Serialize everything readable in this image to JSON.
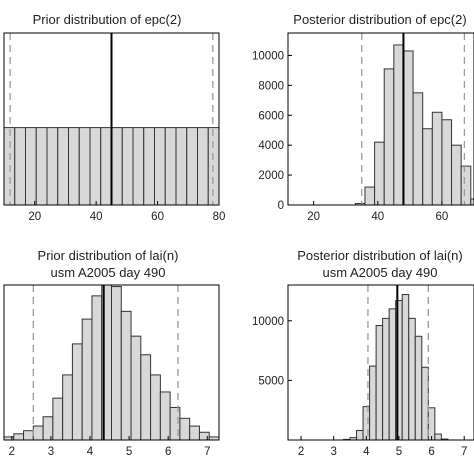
{
  "colors": {
    "bar_fill": "#d8d8d8",
    "bar_stroke": "#333333",
    "median_line": "#000000",
    "ci_line": "#9a9a9a",
    "axes": "#000000"
  },
  "chart_data": [
    {
      "type": "bar",
      "title": "Prior distribution of epc(2)",
      "subtitle": "",
      "xlim": [
        10,
        80
      ],
      "ylim": [
        0,
        1
      ],
      "xticks": [
        "20",
        "40",
        "60",
        "80"
      ],
      "yticks": [],
      "bin_start": 10,
      "bin_width": 3.5,
      "values": [
        0.45,
        0.45,
        0.45,
        0.45,
        0.45,
        0.45,
        0.45,
        0.45,
        0.45,
        0.45,
        0.45,
        0.45,
        0.45,
        0.45,
        0.45,
        0.45,
        0.45,
        0.45,
        0.45,
        0.45
      ],
      "median": 45,
      "ci": [
        12,
        78
      ]
    },
    {
      "type": "bar",
      "title": "Posterior distribution of epc(2)",
      "subtitle": "",
      "xlim": [
        12,
        70
      ],
      "ylim": [
        0,
        11500
      ],
      "xticks": [
        "20",
        "40",
        "60"
      ],
      "yticks": [
        "0",
        "2000",
        "4000",
        "6000",
        "8000",
        "10000"
      ],
      "bin_start": 12,
      "bin_width": 3,
      "values": [
        0,
        0,
        0,
        0,
        0,
        0,
        0,
        100,
        1200,
        4200,
        9100,
        10700,
        10300,
        7500,
        5100,
        6200,
        5700,
        4000,
        2600,
        400
      ],
      "median": 48,
      "ci": [
        35,
        67
      ]
    },
    {
      "type": "bar",
      "title": "Prior distribution of lai(n)",
      "subtitle": "usm A2005 day 490",
      "xlim": [
        1.8,
        7.3
      ],
      "ylim": [
        0,
        1
      ],
      "xticks": [
        "2",
        "3",
        "4",
        "5",
        "6",
        "7"
      ],
      "yticks": [],
      "bin_start": 1.8,
      "bin_width": 0.25,
      "values": [
        0.02,
        0.04,
        0.06,
        0.09,
        0.15,
        0.27,
        0.42,
        0.62,
        0.78,
        0.93,
        1.0,
        0.99,
        0.83,
        0.67,
        0.55,
        0.42,
        0.31,
        0.21,
        0.14,
        0.09,
        0.05,
        0.02
      ],
      "median": 4.35,
      "ci": [
        2.55,
        6.25
      ]
    },
    {
      "type": "bar",
      "title": "Posterior distribution of lai(n)",
      "subtitle": "usm A2005 day 490",
      "xlim": [
        1.6,
        7.3
      ],
      "ylim": [
        0,
        13000
      ],
      "xticks": [
        "2",
        "3",
        "4",
        "5",
        "6",
        "7"
      ],
      "yticks": [
        "5000",
        "10000"
      ],
      "bin_start": 3.3,
      "bin_width": 0.2,
      "values": [
        50,
        200,
        800,
        2800,
        6200,
        9600,
        10200,
        11000,
        11700,
        12200,
        10200,
        8700,
        6100,
        2700,
        500,
        80
      ],
      "median": 4.95,
      "ci": [
        4.05,
        5.9
      ]
    }
  ]
}
